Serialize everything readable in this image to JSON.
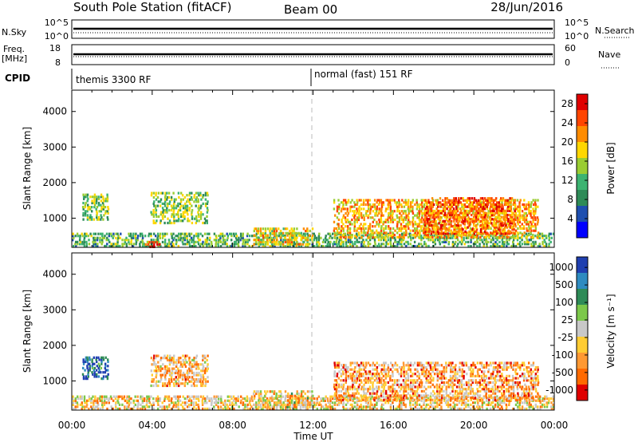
{
  "header": {
    "station": "South Pole Station (fitACF)",
    "beam": "Beam 00",
    "date": "28/Jun/2016"
  },
  "top_panels": {
    "nsky_label": "N.Sky",
    "nsearch_label": "N.Search",
    "nsky_ticks": [
      "10^5",
      "10^0"
    ],
    "nsearch_ticks": [
      "10^5",
      "10^0"
    ],
    "freq_label_1": "Freq.",
    "freq_label_2": "[MHz]",
    "freq_ticks": [
      "18",
      "8"
    ],
    "nave_label": "Nave",
    "nave_ticks": [
      "60",
      "0"
    ],
    "cpid_label": "CPID",
    "cpid_segments": [
      {
        "label": "themis 3300 RF",
        "start_hour": 0
      },
      {
        "label": "normal (fast) 151 RF",
        "start_hour": 12
      }
    ],
    "nsky_value": 10000,
    "freq_value": 11,
    "nave_value": 30
  },
  "colors": {
    "power_scale": [
      "#0000ff",
      "#1e4fb0",
      "#2e8b57",
      "#3cb371",
      "#9acd32",
      "#ffd700",
      "#ff8c00",
      "#ff4500",
      "#e00000"
    ],
    "velocity_scale": [
      "#1f3fb0",
      "#2e8bc0",
      "#2e8b57",
      "#7cc84a",
      "#c8c8c8",
      "#ffcc33",
      "#ff9933",
      "#ff6a00",
      "#e00000"
    ]
  },
  "chart_data": [
    {
      "type": "heatmap",
      "panel": "power",
      "xlabel": "",
      "ylabel": "Slant Range [km]",
      "x_ticks": [
        "00:00",
        "04:00",
        "08:00",
        "12:00",
        "16:00",
        "20:00",
        "00:00"
      ],
      "y_ticks": [
        "1000",
        "2000",
        "3000",
        "4000"
      ],
      "xlim": [
        0,
        24
      ],
      "ylim": [
        180,
        4600
      ],
      "colorbar": {
        "label": "Power [dB]",
        "ticks": [
          "4",
          "8",
          "12",
          "16",
          "20",
          "24",
          "28"
        ],
        "range": [
          0,
          30
        ]
      },
      "reference_line_hour": 12,
      "regions": [
        {
          "t0": 0.5,
          "t1": 1.8,
          "r0": 1000,
          "r1": 1750,
          "value": 14
        },
        {
          "t0": 3.9,
          "t1": 6.8,
          "r0": 900,
          "r1": 1800,
          "value": 14
        },
        {
          "t0": 0.0,
          "t1": 24.0,
          "r0": 250,
          "r1": 650,
          "value": 12
        },
        {
          "t0": 3.6,
          "t1": 4.4,
          "r0": 230,
          "r1": 420,
          "value": 27
        },
        {
          "t0": 13.0,
          "t1": 23.2,
          "r0": 500,
          "r1": 1600,
          "value": 20
        },
        {
          "t0": 17.5,
          "t1": 22.0,
          "r0": 600,
          "r1": 1650,
          "value": 24
        },
        {
          "t0": 9.0,
          "t1": 12.0,
          "r0": 300,
          "r1": 800,
          "value": 18
        }
      ]
    },
    {
      "type": "heatmap",
      "panel": "velocity",
      "xlabel": "Time UT",
      "ylabel": "Slant Range [km]",
      "x_ticks": [
        "00:00",
        "04:00",
        "08:00",
        "12:00",
        "16:00",
        "20:00",
        "00:00"
      ],
      "y_ticks": [
        "1000",
        "2000",
        "3000",
        "4000"
      ],
      "xlim": [
        0,
        24
      ],
      "ylim": [
        180,
        4600
      ],
      "colorbar": {
        "label": "Velocity [m s⁻¹]",
        "ticks": [
          "1000",
          "500",
          "100",
          "25",
          "-25",
          "-100",
          "-500",
          "-1000"
        ],
        "range": [
          -1000,
          1000
        ]
      },
      "reference_line_hour": 12,
      "regions": [
        {
          "t0": 0.5,
          "t1": 1.8,
          "r0": 1100,
          "r1": 1750,
          "value": 800
        },
        {
          "t0": 3.9,
          "t1": 6.8,
          "r0": 900,
          "r1": 1800,
          "value": -300
        },
        {
          "t0": 0.0,
          "t1": 24.0,
          "r0": 250,
          "r1": 650,
          "value": -200
        },
        {
          "t0": 13.0,
          "t1": 23.2,
          "r0": 500,
          "r1": 1600,
          "value": -400
        },
        {
          "t0": 9.0,
          "t1": 12.0,
          "r0": 300,
          "r1": 800,
          "value": -150
        }
      ]
    }
  ]
}
